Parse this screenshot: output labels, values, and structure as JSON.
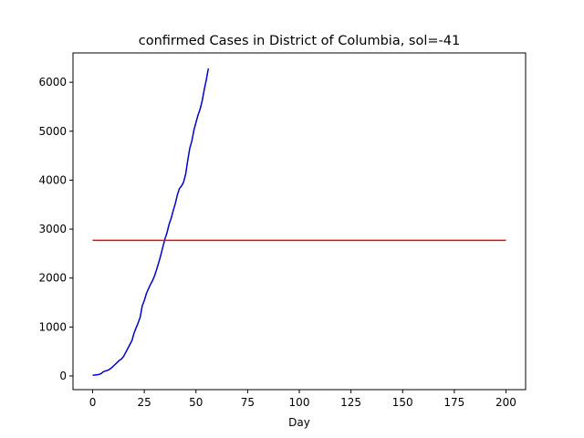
{
  "chart_data": {
    "type": "line",
    "title": "confirmed Cases in District of Columbia, sol=-41",
    "xlabel": "Day",
    "ylabel": "",
    "xlim": [
      -9.5,
      209.5
    ],
    "ylim": [
      -280,
      6600
    ],
    "xticks": [
      0,
      25,
      50,
      75,
      100,
      125,
      150,
      175,
      200
    ],
    "yticks": [
      0,
      1000,
      2000,
      3000,
      4000,
      5000,
      6000
    ],
    "grid": false,
    "legend": "none",
    "series": [
      {
        "color": "#0000cd",
        "x": [
          0,
          1,
          2,
          3,
          4,
          5,
          6,
          7,
          8,
          9,
          10,
          11,
          12,
          13,
          14,
          15,
          16,
          17,
          18,
          19,
          20,
          21,
          22,
          23,
          24,
          25,
          26,
          27,
          28,
          29,
          30,
          31,
          32,
          33,
          34,
          35,
          36,
          37,
          38,
          39,
          40,
          41,
          42,
          43,
          44,
          45,
          46,
          47,
          48,
          49,
          50,
          51,
          52,
          53,
          54,
          55,
          56
        ],
        "y": [
          15,
          18,
          22,
          30,
          45,
          80,
          100,
          110,
          130,
          160,
          200,
          240,
          280,
          320,
          350,
          400,
          480,
          560,
          640,
          720,
          870,
          980,
          1080,
          1200,
          1430,
          1540,
          1680,
          1780,
          1870,
          1950,
          2050,
          2180,
          2320,
          2470,
          2640,
          2800,
          2930,
          3100,
          3220,
          3380,
          3520,
          3700,
          3830,
          3880,
          3960,
          4120,
          4400,
          4650,
          4800,
          5020,
          5180,
          5330,
          5450,
          5620,
          5850,
          6050,
          6280
        ]
      },
      {
        "color": "#ff0000",
        "x": [
          0,
          200
        ],
        "y": [
          2770,
          2770
        ]
      }
    ]
  }
}
